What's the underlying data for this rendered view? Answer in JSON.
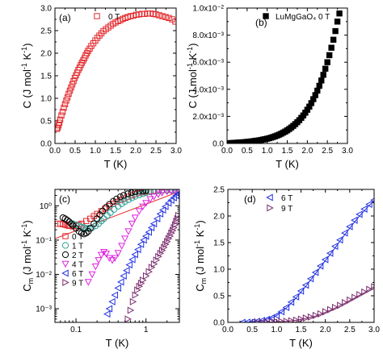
{
  "chart_data": [
    {
      "panel_label": "(a)",
      "type": "scatter",
      "xlabel": "T (K)",
      "ylabel_html": "C (J mol⁻¹ K⁻¹)",
      "ylabel": "C (J mol-1 K-1)",
      "xlim": [
        0,
        3.0
      ],
      "ylim": [
        0,
        3.0
      ],
      "xticks": [
        "0.0",
        "0.5",
        "1.0",
        "1.5",
        "2.0",
        "2.5",
        "3.0"
      ],
      "yticks": [
        "0.0",
        "0.5",
        "1.0",
        "1.5",
        "2.0",
        "2.5",
        "3.0"
      ],
      "legend_position": "top",
      "series": [
        {
          "name": "0 T",
          "marker": "open-square",
          "color": "#e3262a",
          "x": [
            0.05,
            0.07,
            0.09,
            0.11,
            0.13,
            0.16,
            0.19,
            0.22,
            0.25,
            0.28,
            0.31,
            0.34,
            0.37,
            0.4,
            0.43,
            0.46,
            0.49,
            0.52,
            0.55,
            0.58,
            0.61,
            0.64,
            0.67,
            0.7,
            0.73,
            0.76,
            0.79,
            0.82,
            0.86,
            0.9,
            0.95,
            1.0,
            1.05,
            1.1,
            1.15,
            1.2,
            1.26,
            1.32,
            1.38,
            1.44,
            1.5,
            1.56,
            1.62,
            1.68,
            1.74,
            1.8,
            1.87,
            1.94,
            2.01,
            2.08,
            2.15,
            2.22,
            2.29,
            2.36,
            2.43,
            2.5,
            2.58,
            2.66,
            2.74,
            2.82,
            2.9,
            2.98
          ],
          "y": [
            0.32,
            0.35,
            0.4,
            0.46,
            0.53,
            0.62,
            0.7,
            0.79,
            0.87,
            0.95,
            1.02,
            1.1,
            1.17,
            1.24,
            1.31,
            1.38,
            1.45,
            1.51,
            1.57,
            1.63,
            1.68,
            1.74,
            1.79,
            1.84,
            1.89,
            1.95,
            2.0,
            2.05,
            2.1,
            2.16,
            2.22,
            2.28,
            2.34,
            2.39,
            2.44,
            2.49,
            2.53,
            2.57,
            2.61,
            2.65,
            2.68,
            2.71,
            2.73,
            2.76,
            2.78,
            2.8,
            2.82,
            2.83,
            2.85,
            2.86,
            2.87,
            2.87,
            2.88,
            2.88,
            2.87,
            2.86,
            2.84,
            2.82,
            2.8,
            2.78,
            2.75,
            2.7
          ]
        }
      ]
    },
    {
      "panel_label": "(b)",
      "type": "scatter",
      "xlabel": "T (K)",
      "ylabel_html": "C (J mol⁻¹ K⁻¹)",
      "ylabel": "C (J mol-1 K-1)",
      "xlim": [
        0,
        3.0
      ],
      "ylim": [
        0,
        0.01
      ],
      "xticks": [
        "0.0",
        "0.5",
        "1.0",
        "1.5",
        "2.0",
        "2.5",
        "3.0"
      ],
      "yticks": [
        "0.0",
        "2.0x10⁻³",
        "4.0x10⁻³",
        "6.0x10⁻³",
        "8.0x10⁻³",
        "1.0x10⁻²"
      ],
      "legend_position": "top",
      "series": [
        {
          "name": "LuMgGaO₄ 0 T",
          "marker": "filled-square",
          "color": "#000000",
          "x": [
            0.05,
            0.1,
            0.15,
            0.2,
            0.25,
            0.3,
            0.35,
            0.4,
            0.45,
            0.5,
            0.55,
            0.6,
            0.65,
            0.7,
            0.75,
            0.8,
            0.85,
            0.9,
            0.95,
            1.0,
            1.05,
            1.1,
            1.15,
            1.2,
            1.25,
            1.3,
            1.35,
            1.4,
            1.45,
            1.5,
            1.55,
            1.6,
            1.65,
            1.7,
            1.75,
            1.8,
            1.85,
            1.9,
            1.95,
            2.0,
            2.05,
            2.1,
            2.15,
            2.2,
            2.25,
            2.3,
            2.35,
            2.4,
            2.45,
            2.5,
            2.55,
            2.6,
            2.65,
            2.7,
            2.75,
            2.8
          ],
          "y": [
            2e-05,
            3e-05,
            4e-05,
            5e-05,
            6e-05,
            7e-05,
            8e-05,
            9e-05,
            0.0001,
            0.00012,
            0.00013,
            0.00015,
            0.00017,
            0.00019,
            0.00021,
            0.00023,
            0.00026,
            0.00029,
            0.00032,
            0.00035,
            0.00039,
            0.00043,
            0.00048,
            0.00053,
            0.00059,
            0.00065,
            0.00072,
            0.0008,
            0.00088,
            0.00097,
            0.00107,
            0.00118,
            0.0013,
            0.00143,
            0.00157,
            0.00172,
            0.00189,
            0.00207,
            0.00227,
            0.00249,
            0.00272,
            0.00298,
            0.00327,
            0.00357,
            0.0039,
            0.00426,
            0.00465,
            0.00507,
            0.00552,
            0.006,
            0.00652,
            0.00707,
            0.00766,
            0.0083,
            0.009,
            0.0096
          ]
        }
      ]
    },
    {
      "panel_label": "(c)",
      "type": "scatter",
      "xscale": "log",
      "yscale": "log",
      "xlabel": "T (K)",
      "ylabel": "Cm (J mol-1 K-1)",
      "xlim": [
        0.05,
        3.0
      ],
      "ylim": [
        0.0004,
        3.0
      ],
      "xticks": [
        "0.1",
        "1"
      ],
      "yticks": [
        "10⁻³",
        "10⁻²",
        "10⁻¹",
        "10⁰"
      ],
      "legend_position": "left",
      "fit_line": {
        "color": "#e3262a",
        "x": [
          0.05,
          3.0
        ],
        "y": [
          0.11,
          2.6
        ]
      },
      "series": [
        {
          "name": "0 T",
          "marker": "open-square",
          "color": "#e3262a",
          "x": [
            0.055,
            0.06,
            0.065,
            0.07,
            0.075,
            0.08,
            0.09,
            0.1,
            0.11,
            0.12,
            0.14,
            0.16,
            0.18,
            0.2,
            0.23,
            0.26,
            0.3,
            0.34,
            0.38,
            0.43,
            0.48,
            0.55,
            0.62,
            0.7,
            0.8,
            0.9,
            1.0,
            1.15,
            1.3,
            1.5,
            1.7,
            2.0,
            2.3,
            2.6,
            2.9
          ],
          "y": [
            0.3,
            0.3,
            0.29,
            0.28,
            0.27,
            0.26,
            0.25,
            0.26,
            0.28,
            0.3,
            0.36,
            0.42,
            0.5,
            0.58,
            0.7,
            0.82,
            0.98,
            1.15,
            1.3,
            1.47,
            1.63,
            1.84,
            2.01,
            2.17,
            2.34,
            2.48,
            2.58,
            2.68,
            2.75,
            2.82,
            2.86,
            2.88,
            2.87,
            2.84,
            2.78
          ]
        },
        {
          "name": "1 T",
          "marker": "open-circle",
          "color": "#2aa198",
          "x": [
            0.09,
            0.1,
            0.11,
            0.12,
            0.13,
            0.14,
            0.15,
            0.17,
            0.19,
            0.21,
            0.23,
            0.25,
            0.28,
            0.31,
            0.35,
            0.4,
            0.45,
            0.5,
            0.56,
            0.63,
            0.7,
            0.8,
            0.9,
            1.0,
            1.15,
            1.3,
            1.5,
            1.7,
            2.0,
            2.3,
            2.6,
            2.9
          ],
          "y": [
            0.3,
            0.28,
            0.26,
            0.24,
            0.23,
            0.22,
            0.22,
            0.23,
            0.26,
            0.3,
            0.36,
            0.42,
            0.52,
            0.63,
            0.78,
            0.97,
            1.15,
            1.32,
            1.5,
            1.7,
            1.88,
            2.08,
            2.25,
            2.4,
            2.55,
            2.66,
            2.76,
            2.82,
            2.86,
            2.85,
            2.82,
            2.76
          ]
        },
        {
          "name": "2 T",
          "marker": "open-circle",
          "color": "#000000",
          "x": [
            0.065,
            0.07,
            0.075,
            0.08,
            0.085,
            0.09,
            0.1,
            0.11,
            0.12,
            0.13,
            0.14,
            0.15,
            0.16,
            0.18,
            0.2,
            0.22,
            0.24,
            0.27,
            0.3,
            0.34,
            0.38,
            0.43,
            0.48,
            0.55,
            0.62,
            0.7,
            0.8,
            0.9,
            1.0
          ],
          "y": [
            0.45,
            0.42,
            0.38,
            0.34,
            0.3,
            0.27,
            0.22,
            0.18,
            0.16,
            0.15,
            0.16,
            0.18,
            0.22,
            0.3,
            0.42,
            0.55,
            0.7,
            0.9,
            1.1,
            1.35,
            1.58,
            1.82,
            2.02,
            2.25,
            2.42,
            2.56,
            2.66,
            2.72,
            2.75
          ]
        },
        {
          "name": "4 T",
          "marker": "open-triangle-down",
          "color": "#e020e0",
          "x": [
            0.15,
            0.17,
            0.19,
            0.21,
            0.23,
            0.25,
            0.27,
            0.3,
            0.33,
            0.36,
            0.4,
            0.45,
            0.5,
            0.56,
            0.63,
            0.7,
            0.8,
            0.9,
            1.0,
            1.15,
            1.3,
            1.5,
            1.7,
            2.0,
            2.3,
            2.6,
            2.9
          ],
          "y": [
            0.006,
            0.01,
            0.017,
            0.026,
            0.037,
            0.045,
            0.04,
            0.03,
            0.026,
            0.03,
            0.042,
            0.068,
            0.11,
            0.18,
            0.3,
            0.45,
            0.7,
            0.95,
            1.2,
            1.55,
            1.85,
            2.15,
            2.4,
            2.6,
            2.72,
            2.75,
            2.72
          ]
        },
        {
          "name": "6 T",
          "marker": "open-triangle-left",
          "color": "#2030e0",
          "x": [
            0.28,
            0.3,
            0.33,
            0.36,
            0.4,
            0.44,
            0.48,
            0.53,
            0.58,
            0.64,
            0.7,
            0.77,
            0.85,
            0.93,
            1.0,
            1.1,
            1.2,
            1.3,
            1.45,
            1.6,
            1.75,
            1.9,
            2.1,
            2.3,
            2.5,
            2.7,
            2.9
          ],
          "y": [
            0.0007,
            0.001,
            0.0016,
            0.0025,
            0.004,
            0.006,
            0.009,
            0.013,
            0.019,
            0.027,
            0.038,
            0.053,
            0.075,
            0.1,
            0.13,
            0.17,
            0.23,
            0.3,
            0.42,
            0.58,
            0.75,
            0.95,
            1.2,
            1.45,
            1.72,
            1.98,
            2.25
          ]
        },
        {
          "name": "9 T",
          "marker": "open-triangle-right",
          "color": "#7b2d6e",
          "x": [
            0.55,
            0.6,
            0.65,
            0.7,
            0.75,
            0.8,
            0.85,
            0.9,
            1.0,
            1.1,
            1.2,
            1.3,
            1.4,
            1.5,
            1.6,
            1.7,
            1.8,
            1.9,
            2.0,
            2.1,
            2.2,
            2.3,
            2.4,
            2.5,
            2.6,
            2.7,
            2.8,
            2.9
          ],
          "y": [
            0.0005,
            0.0009,
            0.0016,
            0.0025,
            0.0035,
            0.0045,
            0.0055,
            0.0068,
            0.009,
            0.012,
            0.016,
            0.02,
            0.026,
            0.033,
            0.041,
            0.05,
            0.061,
            0.075,
            0.09,
            0.11,
            0.13,
            0.16,
            0.19,
            0.23,
            0.28,
            0.35,
            0.42,
            0.52
          ]
        }
      ]
    },
    {
      "panel_label": "(d)",
      "type": "scatter",
      "xlabel": "T (K)",
      "ylabel": "Cm (J mol-1 K-1)",
      "xlim": [
        0,
        3.0
      ],
      "ylim": [
        0,
        2.5
      ],
      "xticks": [
        "0.0",
        "0.5",
        "1.0",
        "1.5",
        "2.0",
        "2.5",
        "3.0"
      ],
      "yticks": [
        "0.0",
        "0.5",
        "1.0",
        "1.5",
        "2.0",
        "2.5"
      ],
      "legend_position": "top-left",
      "series": [
        {
          "name": "6 T",
          "marker": "open-triangle-left",
          "color": "#2030e0",
          "x": [
            0.3,
            0.4,
            0.5,
            0.6,
            0.7,
            0.8,
            0.9,
            1.0,
            1.1,
            1.2,
            1.3,
            1.4,
            1.5,
            1.6,
            1.7,
            1.8,
            1.9,
            2.0,
            2.1,
            2.2,
            2.3,
            2.4,
            2.5,
            2.6,
            2.7,
            2.8,
            2.9,
            3.0
          ],
          "y": [
            0.0,
            0.004,
            0.01,
            0.02,
            0.035,
            0.055,
            0.085,
            0.13,
            0.2,
            0.28,
            0.38,
            0.48,
            0.59,
            0.7,
            0.82,
            0.94,
            1.06,
            1.18,
            1.3,
            1.43,
            1.55,
            1.68,
            1.8,
            1.92,
            2.03,
            2.13,
            2.22,
            2.3
          ],
          "fit_x": [
            0.3,
            0.5,
            0.7,
            0.9,
            1.0,
            1.1,
            1.2,
            1.3,
            1.4,
            1.5,
            1.6,
            1.7,
            1.8,
            1.9,
            2.0,
            2.1,
            2.2,
            2.3,
            2.4,
            2.5,
            2.6,
            2.7,
            2.8,
            2.9,
            3.0
          ],
          "fit_y": [
            0.0,
            0.01,
            0.035,
            0.085,
            0.13,
            0.19,
            0.27,
            0.36,
            0.46,
            0.57,
            0.68,
            0.8,
            0.92,
            1.04,
            1.16,
            1.28,
            1.4,
            1.53,
            1.65,
            1.77,
            1.89,
            2.0,
            2.1,
            2.2,
            2.29
          ]
        },
        {
          "name": "9 T",
          "marker": "open-triangle-right",
          "color": "#7b2d6e",
          "x": [
            0.6,
            0.7,
            0.8,
            0.9,
            1.0,
            1.1,
            1.2,
            1.3,
            1.4,
            1.5,
            1.6,
            1.7,
            1.8,
            1.9,
            2.0,
            2.1,
            2.2,
            2.3,
            2.4,
            2.5,
            2.6,
            2.7,
            2.8,
            2.9,
            3.0
          ],
          "y": [
            0.0,
            0.002,
            0.004,
            0.007,
            0.01,
            0.015,
            0.02,
            0.03,
            0.042,
            0.06,
            0.08,
            0.1,
            0.13,
            0.16,
            0.2,
            0.24,
            0.28,
            0.32,
            0.37,
            0.42,
            0.47,
            0.52,
            0.57,
            0.62,
            0.67
          ],
          "fit_x": [
            0.6,
            0.8,
            1.0,
            1.2,
            1.4,
            1.6,
            1.8,
            2.0,
            2.2,
            2.4,
            2.6,
            2.8,
            3.0
          ],
          "fit_y": [
            0.0,
            0.004,
            0.01,
            0.02,
            0.04,
            0.075,
            0.12,
            0.19,
            0.27,
            0.36,
            0.46,
            0.56,
            0.67
          ]
        }
      ]
    }
  ]
}
